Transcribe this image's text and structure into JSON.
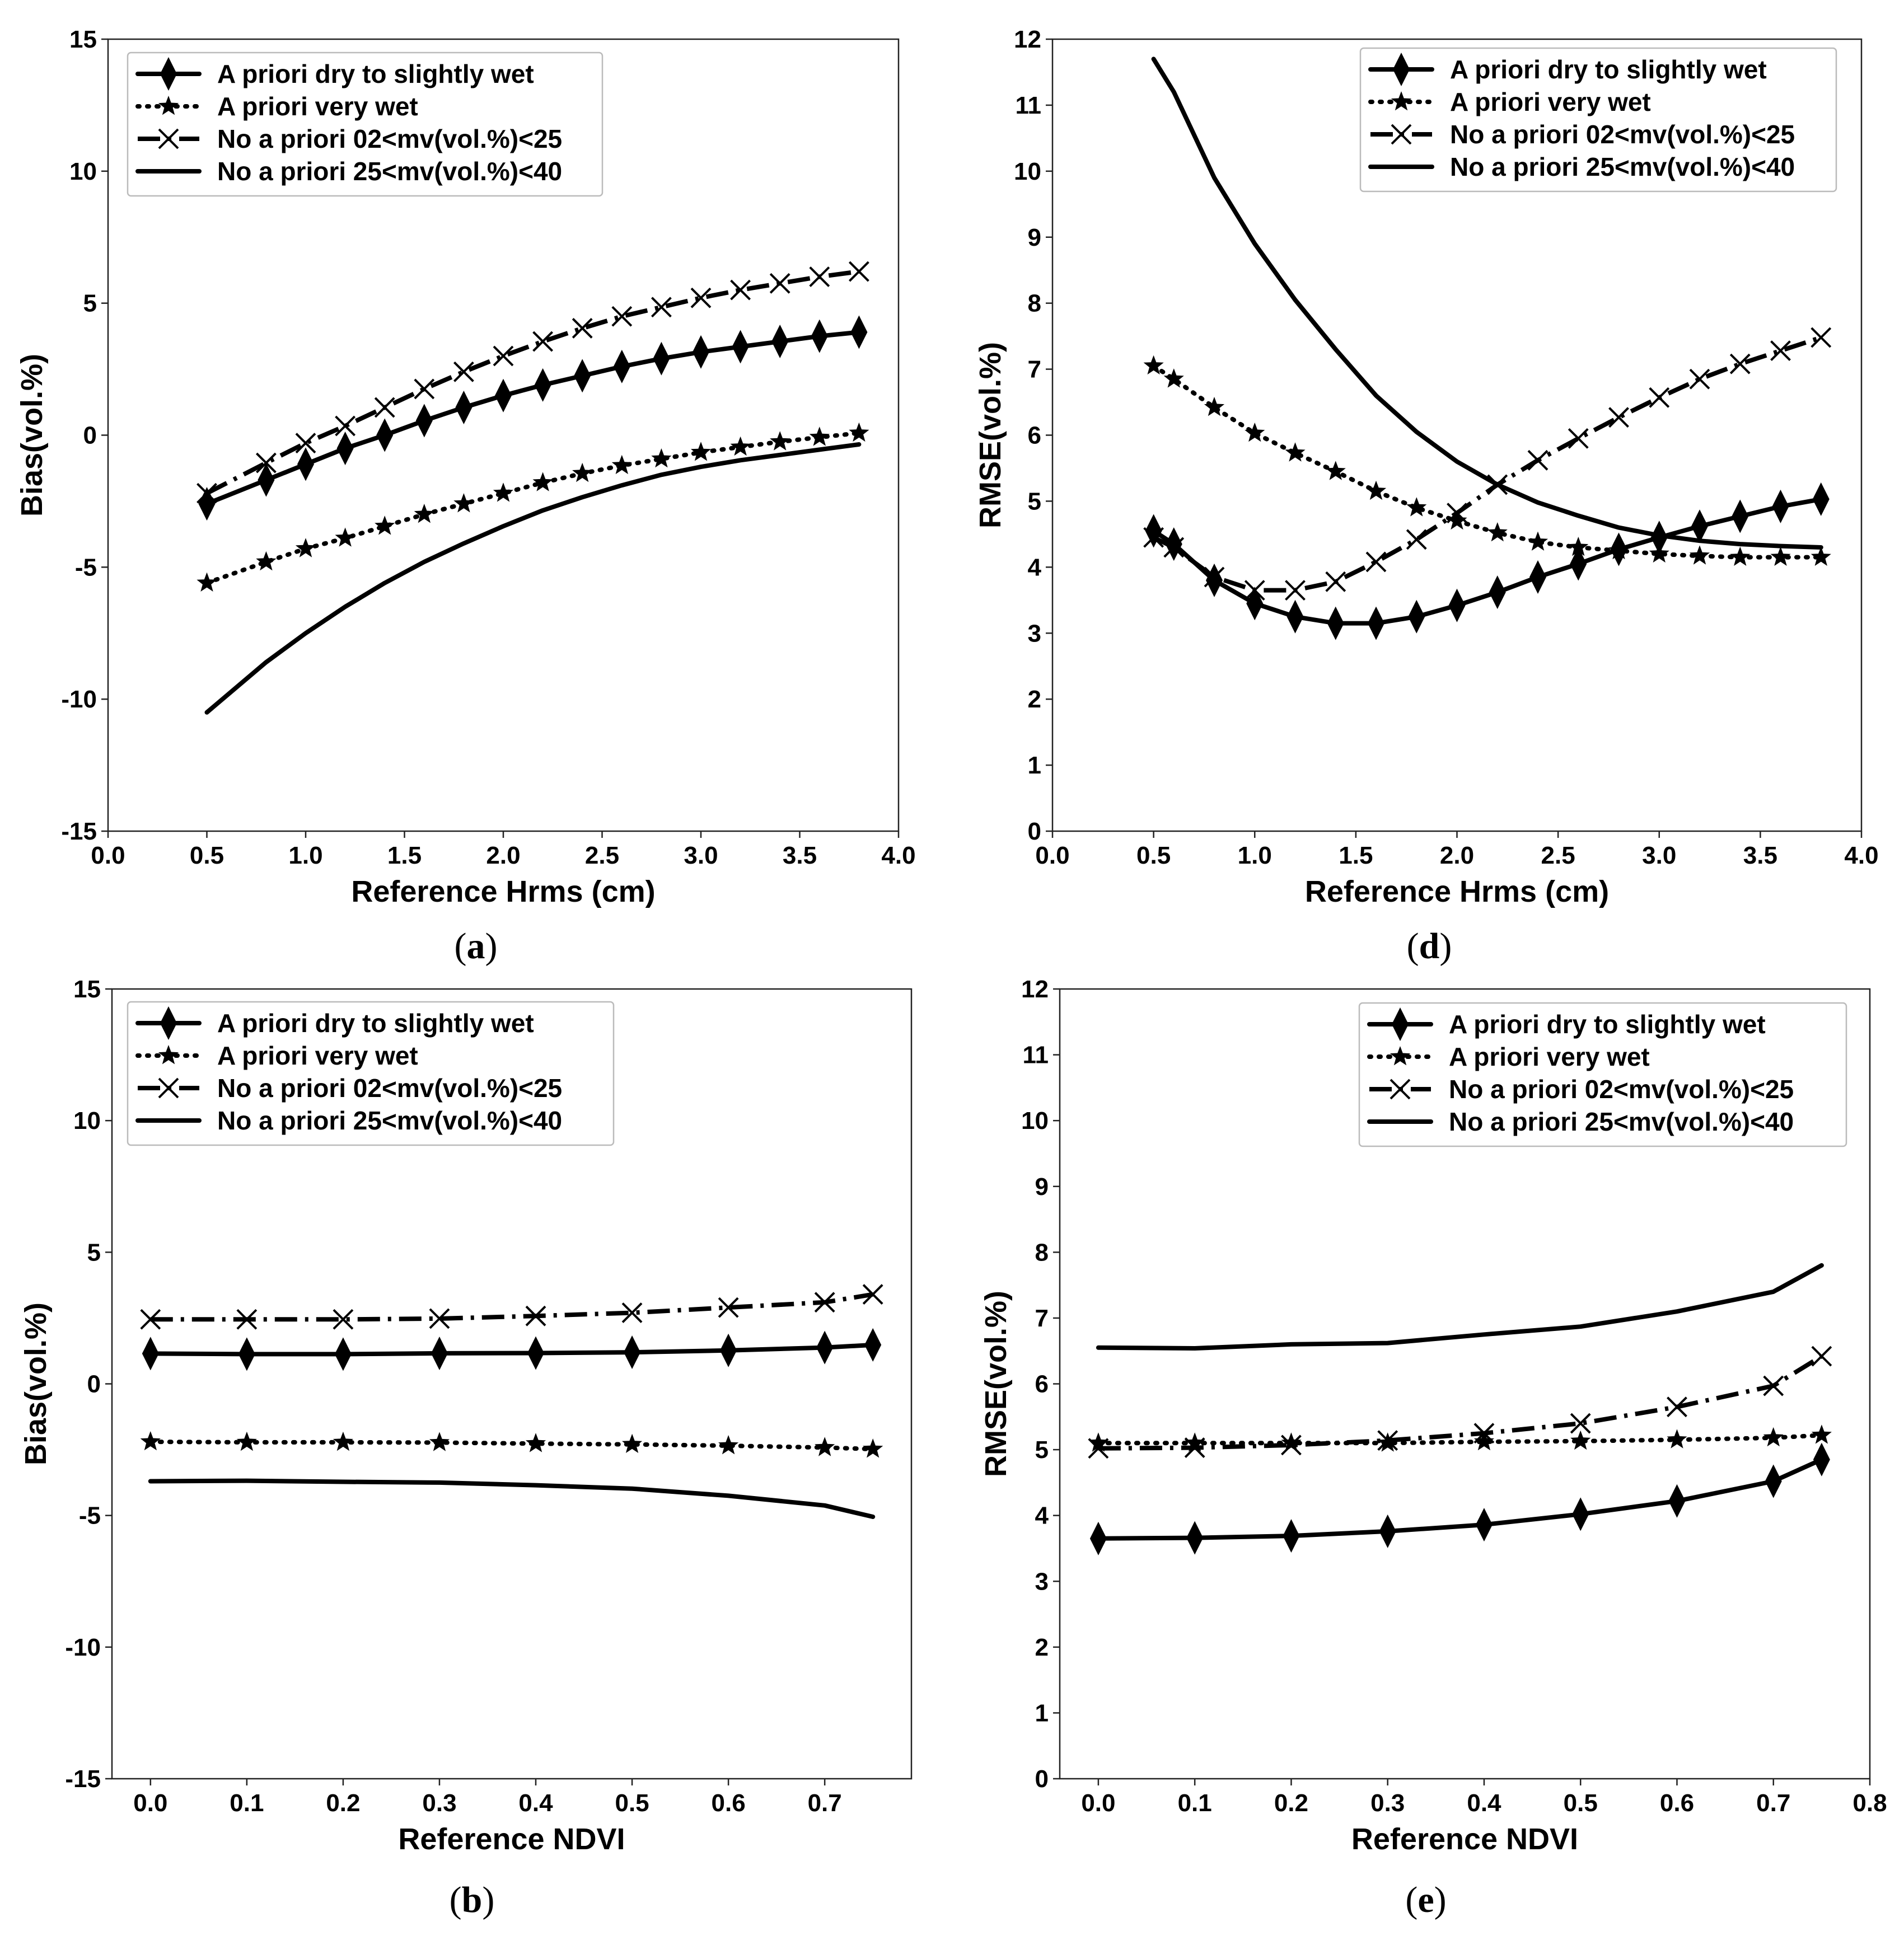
{
  "chart_data": [
    {
      "id": "a",
      "type": "line",
      "panel_label": "a",
      "xlabel": "Reference Hrms (cm)",
      "ylabel": "Bias(vol.%)",
      "xlim": [
        0.0,
        4.0
      ],
      "ylim": [
        -15,
        15
      ],
      "xticks": [
        0.0,
        0.5,
        1.0,
        1.5,
        2.0,
        2.5,
        3.0,
        3.5,
        4.0
      ],
      "xtick_labels": [
        "0.0",
        "0.5",
        "1.0",
        "1.5",
        "2.0",
        "2.5",
        "3.0",
        "3.5",
        "4.0"
      ],
      "yticks": [
        -15,
        -10,
        -5,
        0,
        5,
        10,
        15
      ],
      "ytick_labels": [
        "-15",
        "-10",
        "-5",
        "0",
        "5",
        "10",
        "15"
      ],
      "legend_position": "top-left",
      "grid": false,
      "x": [
        0.5,
        0.8,
        1.0,
        1.2,
        1.4,
        1.6,
        1.8,
        2.0,
        2.2,
        2.4,
        2.6,
        2.8,
        3.0,
        3.2,
        3.4,
        3.6,
        3.8
      ],
      "series": [
        {
          "name": "A priori dry to slightly wet",
          "style": "diamond",
          "values": [
            -2.6,
            -1.7,
            -1.1,
            -0.5,
            0.0,
            0.55,
            1.05,
            1.5,
            1.9,
            2.25,
            2.6,
            2.9,
            3.15,
            3.35,
            3.55,
            3.75,
            3.9
          ]
        },
        {
          "name": "A priori very wet",
          "style": "star",
          "values": [
            -5.6,
            -4.8,
            -4.3,
            -3.9,
            -3.45,
            -3.0,
            -2.6,
            -2.2,
            -1.8,
            -1.45,
            -1.15,
            -0.9,
            -0.65,
            -0.45,
            -0.25,
            -0.08,
            0.08
          ]
        },
        {
          "name": "No a priori 02<mv(vol.%)<25",
          "style": "cross",
          "values": [
            -2.2,
            -1.05,
            -0.3,
            0.35,
            1.05,
            1.75,
            2.4,
            3.0,
            3.55,
            4.05,
            4.5,
            4.85,
            5.2,
            5.5,
            5.75,
            6.0,
            6.2
          ]
        },
        {
          "name": "No a priori 25<mv(vol.%)<40",
          "style": "solid",
          "values": [
            -10.5,
            -8.6,
            -7.5,
            -6.5,
            -5.6,
            -4.8,
            -4.1,
            -3.45,
            -2.85,
            -2.35,
            -1.9,
            -1.5,
            -1.2,
            -0.95,
            -0.75,
            -0.55,
            -0.35
          ]
        }
      ]
    },
    {
      "id": "d",
      "type": "line",
      "panel_label": "d",
      "xlabel": "Reference Hrms (cm)",
      "ylabel": "RMSE(vol.%)",
      "xlim": [
        0.0,
        4.0
      ],
      "ylim": [
        0,
        12
      ],
      "xticks": [
        0.0,
        0.5,
        1.0,
        1.5,
        2.0,
        2.5,
        3.0,
        3.5,
        4.0
      ],
      "xtick_labels": [
        "0.0",
        "0.5",
        "1.0",
        "1.5",
        "2.0",
        "2.5",
        "3.0",
        "3.5",
        "4.0"
      ],
      "yticks": [
        0,
        1,
        2,
        3,
        4,
        5,
        6,
        7,
        8,
        9,
        10,
        11,
        12
      ],
      "ytick_labels": [
        "0",
        "1",
        "2",
        "3",
        "4",
        "5",
        "6",
        "7",
        "8",
        "9",
        "10",
        "11",
        "12"
      ],
      "legend_position": "top-right",
      "grid": false,
      "x": [
        0.5,
        0.6,
        0.8,
        1.0,
        1.2,
        1.4,
        1.6,
        1.8,
        2.0,
        2.2,
        2.4,
        2.6,
        2.8,
        3.0,
        3.2,
        3.4,
        3.6,
        3.8
      ],
      "series": [
        {
          "name": "A priori dry to slightly wet",
          "style": "diamond",
          "values": [
            4.55,
            4.35,
            3.8,
            3.45,
            3.25,
            3.15,
            3.15,
            3.25,
            3.42,
            3.62,
            3.85,
            4.05,
            4.27,
            4.45,
            4.62,
            4.77,
            4.92,
            5.03
          ]
        },
        {
          "name": "A priori very wet",
          "style": "star",
          "values": [
            7.05,
            6.85,
            6.42,
            6.03,
            5.73,
            5.45,
            5.15,
            4.9,
            4.7,
            4.52,
            4.38,
            4.3,
            4.25,
            4.2,
            4.17,
            4.15,
            4.15,
            4.15
          ]
        },
        {
          "name": "No a priori 02<mv(vol.%)<25",
          "style": "cross",
          "values": [
            4.45,
            4.3,
            3.85,
            3.65,
            3.65,
            3.78,
            4.08,
            4.42,
            4.82,
            5.25,
            5.62,
            5.95,
            6.27,
            6.57,
            6.85,
            7.08,
            7.28,
            7.48
          ]
        },
        {
          "name": "No a priori 25<mv(vol.%)<40",
          "style": "solid",
          "values": [
            11.7,
            11.2,
            9.9,
            8.9,
            8.05,
            7.3,
            6.6,
            6.05,
            5.6,
            5.25,
            4.98,
            4.78,
            4.6,
            4.48,
            4.4,
            4.35,
            4.32,
            4.3
          ]
        }
      ]
    },
    {
      "id": "b",
      "type": "line",
      "panel_label": "b",
      "xlabel": "Reference NDVI",
      "ylabel": "Bias(vol.%)",
      "xlim": [
        -0.04,
        0.79
      ],
      "ylim": [
        -15,
        15
      ],
      "xticks": [
        0.0,
        0.1,
        0.2,
        0.3,
        0.4,
        0.5,
        0.6,
        0.7
      ],
      "xtick_labels": [
        "0.0",
        "0.1",
        "0.2",
        "0.3",
        "0.4",
        "0.5",
        "0.6",
        "0.7"
      ],
      "yticks": [
        -15,
        -10,
        -5,
        0,
        5,
        10,
        15
      ],
      "ytick_labels": [
        "-15",
        "-10",
        "-5",
        "0",
        "5",
        "10",
        "15"
      ],
      "legend_position": "top-left",
      "grid": false,
      "x": [
        0.0,
        0.1,
        0.2,
        0.3,
        0.4,
        0.5,
        0.6,
        0.7,
        0.75
      ],
      "series": [
        {
          "name": "A priori dry to slightly wet",
          "style": "diamond",
          "values": [
            1.15,
            1.13,
            1.13,
            1.16,
            1.17,
            1.2,
            1.27,
            1.38,
            1.48
          ]
        },
        {
          "name": "A priori very wet",
          "style": "star",
          "values": [
            -2.2,
            -2.22,
            -2.22,
            -2.23,
            -2.27,
            -2.3,
            -2.35,
            -2.42,
            -2.48
          ]
        },
        {
          "name": "No a priori 02<mv(vol.%)<25",
          "style": "cross",
          "values": [
            2.45,
            2.45,
            2.45,
            2.48,
            2.58,
            2.7,
            2.9,
            3.1,
            3.4
          ]
        },
        {
          "name": "No a priori 25<mv(vol.%)<40",
          "style": "solid",
          "values": [
            -3.7,
            -3.68,
            -3.72,
            -3.75,
            -3.85,
            -3.98,
            -4.25,
            -4.62,
            -5.05
          ]
        }
      ]
    },
    {
      "id": "e",
      "type": "line",
      "panel_label": "e",
      "xlabel": "Reference NDVI",
      "ylabel": "RMSE(vol.%)",
      "xlim": [
        -0.04,
        0.8
      ],
      "ylim": [
        0,
        12
      ],
      "xticks": [
        0.0,
        0.1,
        0.2,
        0.3,
        0.4,
        0.5,
        0.6,
        0.7,
        0.8
      ],
      "xtick_labels": [
        "0.0",
        "0.1",
        "0.2",
        "0.3",
        "0.4",
        "0.5",
        "0.6",
        "0.7",
        "0.8"
      ],
      "yticks": [
        0,
        1,
        2,
        3,
        4,
        5,
        6,
        7,
        8,
        9,
        10,
        11,
        12
      ],
      "ytick_labels": [
        "0",
        "1",
        "2",
        "3",
        "4",
        "5",
        "6",
        "7",
        "8",
        "9",
        "10",
        "11",
        "12"
      ],
      "legend_position": "top-right",
      "grid": false,
      "x": [
        0.0,
        0.1,
        0.2,
        0.3,
        0.4,
        0.5,
        0.6,
        0.7,
        0.75
      ],
      "series": [
        {
          "name": "A priori dry to slightly wet",
          "style": "diamond",
          "values": [
            3.65,
            3.66,
            3.69,
            3.76,
            3.86,
            4.02,
            4.22,
            4.52,
            4.85
          ]
        },
        {
          "name": "A priori very wet",
          "style": "star",
          "values": [
            5.1,
            5.1,
            5.1,
            5.1,
            5.12,
            5.13,
            5.15,
            5.18,
            5.22
          ]
        },
        {
          "name": "No a priori 02<mv(vol.%)<25",
          "style": "cross",
          "values": [
            5.02,
            5.03,
            5.07,
            5.14,
            5.25,
            5.4,
            5.65,
            5.97,
            6.42
          ]
        },
        {
          "name": "No a priori 25<mv(vol.%)<40",
          "style": "solid",
          "values": [
            6.55,
            6.54,
            6.6,
            6.62,
            6.75,
            6.87,
            7.1,
            7.4,
            7.8
          ]
        }
      ]
    }
  ]
}
